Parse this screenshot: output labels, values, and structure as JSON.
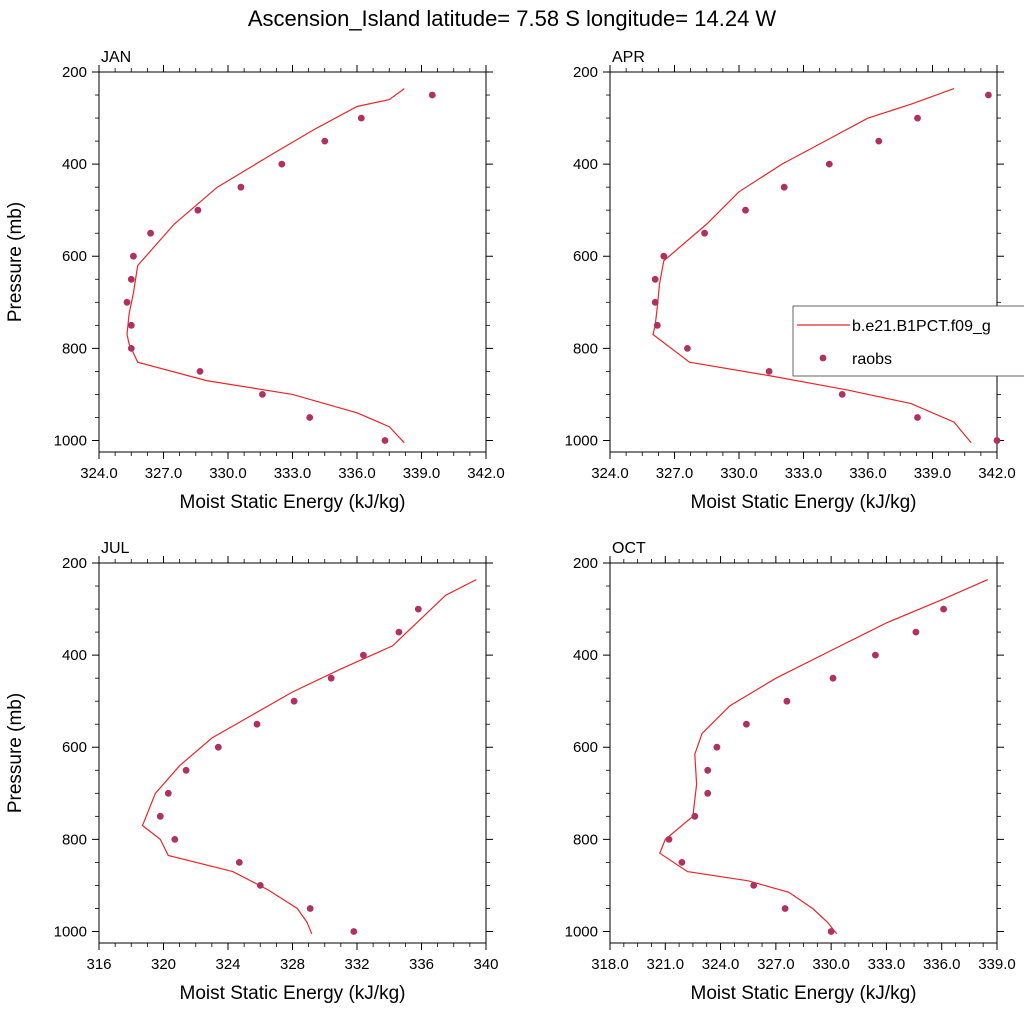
{
  "title": "Ascension_Island  latitude= 7.58 S longitude= 14.24 W",
  "legend": {
    "line_label": "b.e21.B1PCT.f09_g",
    "dot_label": "raobs",
    "line_color": "#e8262b",
    "dot_color": "#b03060"
  },
  "chart_data": [
    {
      "type": "line",
      "title": "JAN",
      "xlabel": "Moist Static Energy (kJ/kg)",
      "ylabel": "Pressure (mb)",
      "xlim": [
        324,
        342
      ],
      "ylim": [
        200,
        1025
      ],
      "xticks": [
        "324.0",
        "327.0",
        "330.0",
        "333.0",
        "336.0",
        "339.0",
        "342.0"
      ],
      "yticks": [
        "200",
        "400",
        "600",
        "800",
        "1000"
      ],
      "series": [
        {
          "name": "b.e21.B1PCT.f09_g",
          "kind": "line",
          "x": [
            338.2,
            337.5,
            336.0,
            334.0,
            332.0,
            329.5,
            327.5,
            325.8,
            325.6,
            325.4,
            325.3,
            325.4,
            325.8,
            329.0,
            333.0,
            336.0,
            337.5,
            338.2
          ],
          "y": [
            236,
            260,
            275,
            325,
            380,
            450,
            530,
            620,
            680,
            725,
            770,
            790,
            830,
            870,
            900,
            940,
            970,
            1005
          ]
        },
        {
          "name": "raobs",
          "kind": "scatter",
          "x": [
            339.5,
            336.2,
            334.5,
            332.5,
            330.6,
            328.6,
            326.4,
            325.6,
            325.5,
            325.3,
            325.5,
            325.5,
            328.7,
            331.6,
            333.8,
            337.3
          ],
          "y": [
            250,
            300,
            350,
            400,
            450,
            500,
            550,
            600,
            650,
            700,
            750,
            800,
            850,
            900,
            950,
            1000
          ]
        }
      ]
    },
    {
      "type": "line",
      "title": "APR",
      "xlabel": "Moist Static Energy (kJ/kg)",
      "ylabel": "",
      "xlim": [
        324,
        342
      ],
      "ylim": [
        200,
        1025
      ],
      "xticks": [
        "324.0",
        "327.0",
        "330.0",
        "333.0",
        "336.0",
        "339.0",
        "342.0"
      ],
      "yticks": [
        "200",
        "400",
        "600",
        "800",
        "1000"
      ],
      "series": [
        {
          "name": "b.e21.B1PCT.f09_g",
          "kind": "line",
          "x": [
            340.0,
            338.0,
            336.0,
            334.0,
            332.0,
            330.0,
            328.5,
            326.5,
            326.3,
            326.2,
            326.1,
            326.0,
            327.7,
            331.5,
            335.0,
            338.0,
            340.0,
            340.8
          ],
          "y": [
            236,
            270,
            300,
            350,
            400,
            460,
            530,
            610,
            660,
            710,
            750,
            770,
            830,
            860,
            890,
            920,
            960,
            1005
          ]
        },
        {
          "name": "raobs",
          "kind": "scatter",
          "x": [
            341.6,
            338.3,
            336.5,
            334.2,
            332.1,
            330.3,
            328.4,
            326.5,
            326.1,
            326.1,
            326.2,
            327.6,
            331.4,
            334.8,
            338.3,
            342.0
          ],
          "y": [
            250,
            300,
            350,
            400,
            450,
            500,
            550,
            600,
            650,
            700,
            750,
            800,
            850,
            900,
            950,
            1000
          ]
        }
      ]
    },
    {
      "type": "line",
      "title": "JUL",
      "xlabel": "Moist Static Energy (kJ/kg)",
      "ylabel": "Pressure (mb)",
      "xlim": [
        316,
        340
      ],
      "ylim": [
        200,
        1025
      ],
      "xticks": [
        "316",
        "320",
        "324",
        "328",
        "332",
        "336",
        "340"
      ],
      "yticks": [
        "200",
        "400",
        "600",
        "800",
        "1000"
      ],
      "series": [
        {
          "name": "b.e21.B1PCT.f09_g",
          "kind": "line",
          "x": [
            339.4,
            337.5,
            336.0,
            334.2,
            331.0,
            328.0,
            325.5,
            323.0,
            321.0,
            319.5,
            318.7,
            319.8,
            320.3,
            324.3,
            326.5,
            328.3,
            328.9,
            329.2
          ],
          "y": [
            236,
            270,
            320,
            380,
            430,
            480,
            530,
            580,
            640,
            700,
            770,
            800,
            835,
            870,
            910,
            950,
            980,
            1005
          ]
        },
        {
          "name": "raobs",
          "kind": "scatter",
          "x": [
            335.8,
            334.6,
            332.4,
            330.4,
            328.1,
            325.8,
            323.4,
            321.4,
            320.3,
            319.8,
            320.7,
            324.7,
            326.0,
            329.1,
            331.8
          ],
          "y": [
            300,
            350,
            400,
            450,
            500,
            550,
            600,
            650,
            700,
            750,
            800,
            850,
            900,
            950,
            1000
          ]
        }
      ]
    },
    {
      "type": "line",
      "title": "OCT",
      "xlabel": "Moist Static Energy (kJ/kg)",
      "ylabel": "",
      "xlim": [
        318,
        339
      ],
      "ylim": [
        200,
        1025
      ],
      "xticks": [
        "318.0",
        "321.0",
        "324.0",
        "327.0",
        "330.0",
        "333.0",
        "336.0",
        "339.0"
      ],
      "yticks": [
        "200",
        "400",
        "600",
        "800",
        "1000"
      ],
      "series": [
        {
          "name": "b.e21.B1PCT.f09_g",
          "kind": "line",
          "x": [
            338.5,
            336.0,
            333.0,
            330.0,
            327.0,
            324.5,
            323.0,
            322.6,
            322.7,
            322.5,
            321.0,
            320.7,
            322.2,
            325.5,
            327.7,
            329.0,
            329.8,
            330.3
          ],
          "y": [
            236,
            280,
            330,
            390,
            450,
            510,
            570,
            615,
            680,
            750,
            800,
            830,
            870,
            890,
            915,
            950,
            980,
            1005
          ]
        },
        {
          "name": "raobs",
          "kind": "scatter",
          "x": [
            336.1,
            334.6,
            332.4,
            330.1,
            327.6,
            325.4,
            323.8,
            323.3,
            323.3,
            322.6,
            321.2,
            321.9,
            325.8,
            327.5,
            330.0
          ],
          "y": [
            300,
            350,
            400,
            450,
            500,
            550,
            600,
            650,
            700,
            750,
            800,
            850,
            900,
            950,
            1000
          ]
        }
      ]
    }
  ]
}
